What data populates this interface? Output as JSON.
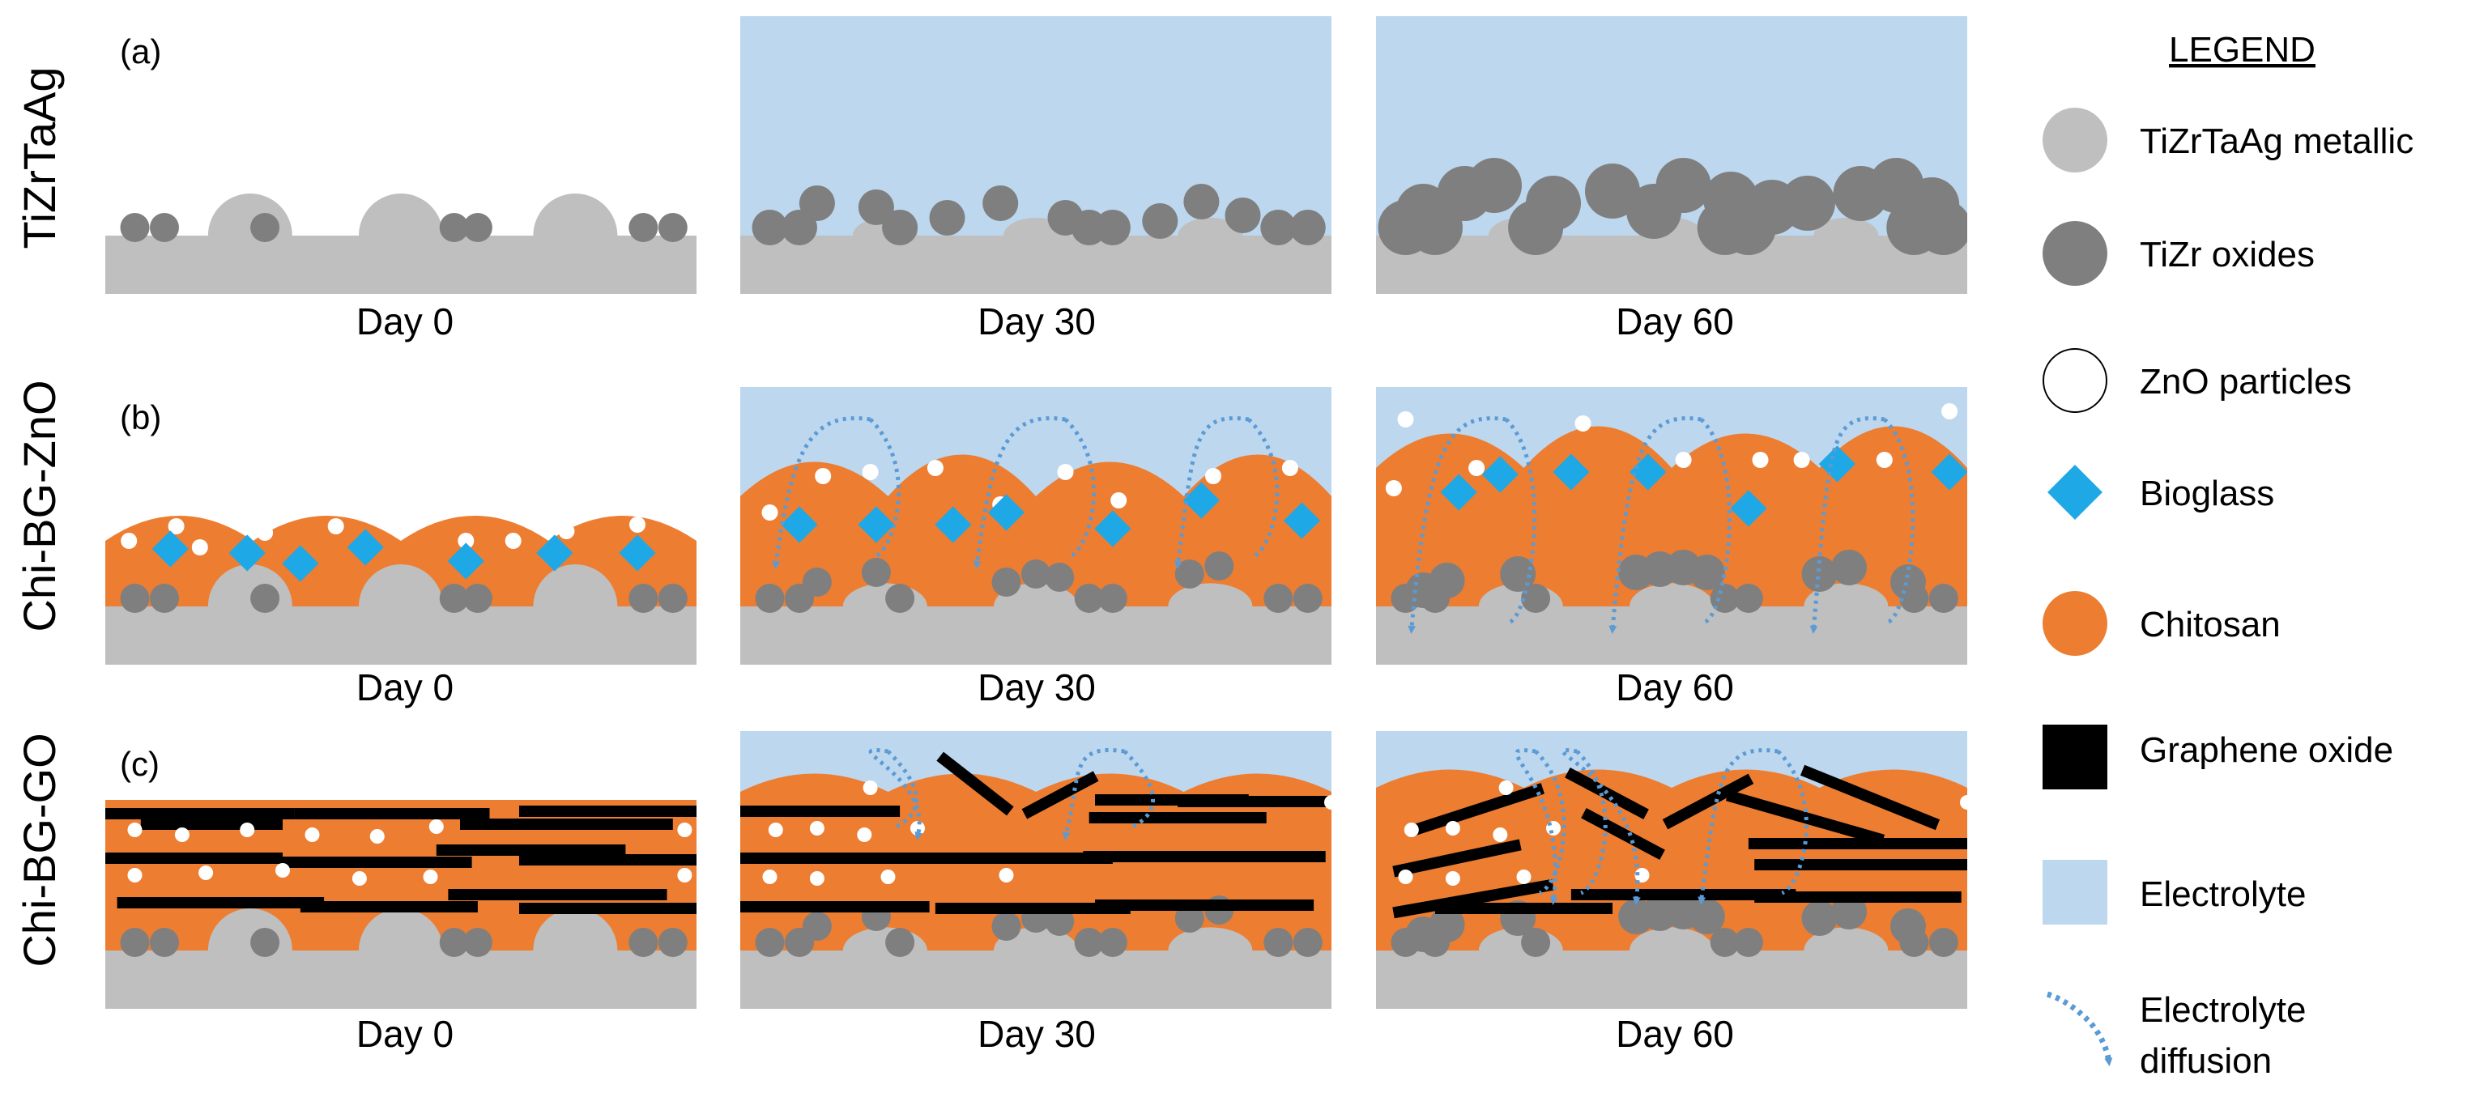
{
  "rows": [
    {
      "letter": "(a)",
      "name": "TiZrTaAg"
    },
    {
      "letter": "(b)",
      "name": "Chi-BG-ZnO"
    },
    {
      "letter": "(c)",
      "name": "Chi-BG-GO"
    }
  ],
  "days": [
    "Day 0",
    "Day 30",
    "Day 60"
  ],
  "legend": {
    "title": "LEGEND",
    "items": [
      {
        "label": "TiZrTaAg metallic",
        "icon": "metallic-circle-icon"
      },
      {
        "label": "TiZr oxides",
        "icon": "oxide-circle-icon"
      },
      {
        "label": "ZnO particles",
        "icon": "zno-circle-icon"
      },
      {
        "label": "Bioglass",
        "icon": "bioglass-diamond-icon"
      },
      {
        "label": "Chitosan",
        "icon": "chitosan-circle-icon"
      },
      {
        "label": "Graphene oxide",
        "icon": "graphene-square-icon"
      },
      {
        "label": "Electrolyte",
        "icon": "electrolyte-square-icon"
      },
      {
        "label": "Electrolyte diffusion",
        "label_line1": "Electrolyte",
        "label_line2": "diffusion",
        "icon": "diffusion-arrow-icon"
      }
    ]
  },
  "colors": {
    "metallic": "#bfbfbf",
    "oxide": "#7f7f7f",
    "zno": "#ffffff",
    "bioglass": "#1fa8e6",
    "chitosan": "#ed7d31",
    "graphene": "#000000",
    "electrolyte": "#bdd7ee",
    "diffusion": "#5b9bd5"
  }
}
